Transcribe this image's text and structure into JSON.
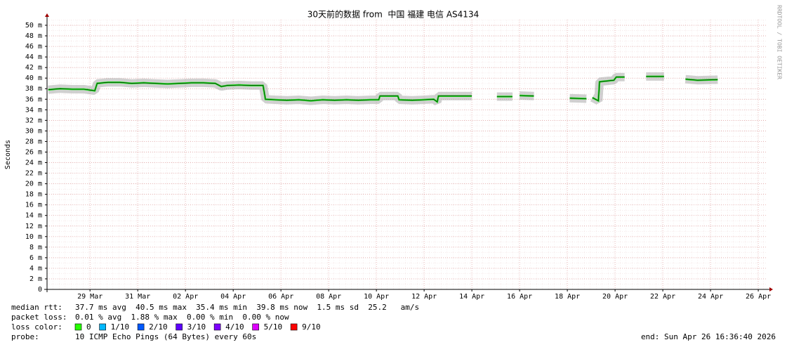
{
  "chart_data": {
    "type": "line",
    "title": "30天前的数据 from  中国 福建 电信 AS4134",
    "y_label": "Seconds",
    "side_note": "RRDTOOL / TOBI OETIKER",
    "grid": true,
    "xlim": [
      86.2,
      116.38
    ],
    "ylim": [
      0,
      51.06
    ],
    "xticks": [
      {
        "value": 88,
        "label": "29 Mar"
      },
      {
        "value": 90,
        "label": "31 Mar"
      },
      {
        "value": 92,
        "label": "02 Apr"
      },
      {
        "value": 94,
        "label": "04 Apr"
      },
      {
        "value": 96,
        "label": "06 Apr"
      },
      {
        "value": 98,
        "label": "08 Apr"
      },
      {
        "value": 100,
        "label": "10 Apr"
      },
      {
        "value": 102,
        "label": "12 Apr"
      },
      {
        "value": 104,
        "label": "14 Apr"
      },
      {
        "value": 106,
        "label": "16 Apr"
      },
      {
        "value": 108,
        "label": "18 Apr"
      },
      {
        "value": 110,
        "label": "20 Apr"
      },
      {
        "value": 112,
        "label": "22 Apr"
      },
      {
        "value": 114,
        "label": "24 Apr"
      },
      {
        "value": 116,
        "label": "26 Apr"
      }
    ],
    "yticks": [
      0,
      {
        "value": 2,
        "label": "2 m"
      },
      {
        "value": 4,
        "label": "4 m"
      },
      {
        "value": 6,
        "label": "6 m"
      },
      {
        "value": 8,
        "label": "8 m"
      },
      {
        "value": 10,
        "label": "10 m"
      },
      {
        "value": 12,
        "label": "12 m"
      },
      {
        "value": 14,
        "label": "14 m"
      },
      {
        "value": 16,
        "label": "16 m"
      },
      {
        "value": 18,
        "label": "18 m"
      },
      {
        "value": 20,
        "label": "20 m"
      },
      {
        "value": 22,
        "label": "22 m"
      },
      {
        "value": 24,
        "label": "24 m"
      },
      {
        "value": 26,
        "label": "26 m"
      },
      {
        "value": 28,
        "label": "28 m"
      },
      {
        "value": 30,
        "label": "30 m"
      },
      {
        "value": 32,
        "label": "32 m"
      },
      {
        "value": 34,
        "label": "34 m"
      },
      {
        "value": 36,
        "label": "36 m"
      },
      {
        "value": 38,
        "label": "38 m"
      },
      {
        "value": 40,
        "label": "40 m"
      },
      {
        "value": 42,
        "label": "42 m"
      },
      {
        "value": 44,
        "label": "44 m"
      },
      {
        "value": 46,
        "label": "46 m"
      },
      {
        "value": 48,
        "label": "48 m"
      },
      {
        "value": 50,
        "label": "50 m"
      }
    ],
    "x": [
      86.25,
      86.75,
      87.25,
      87.75,
      88.2,
      88.3,
      88.75,
      89.25,
      89.75,
      90.25,
      90.75,
      91.25,
      91.75,
      92.25,
      92.75,
      93.25,
      93.5,
      93.75,
      94.25,
      94.75,
      95.25,
      95.35,
      95.75,
      96.25,
      96.75,
      97.25,
      97.75,
      98.25,
      98.75,
      99.25,
      99.75,
      100.1,
      100.15,
      100.9,
      100.95,
      101.5,
      102,
      102.4,
      102.55,
      102.6,
      103.25,
      104,
      104.5,
      105.05,
      105.7,
      105.85,
      106.0,
      106.6,
      107,
      108.1,
      108.8,
      109,
      109.05,
      109.3,
      109.35,
      109.95,
      110.05,
      110.4,
      110.7,
      111.3,
      112.05,
      112.5,
      112.95,
      113.45,
      114.3
    ],
    "series": [
      {
        "color": "#20e020",
        "values": [
          37.8,
          38.0,
          37.9,
          37.9,
          37.6,
          39.0,
          39.2,
          39.2,
          39.0,
          39.1,
          39.0,
          38.9,
          39.0,
          39.1,
          39.1,
          39.0,
          38.4,
          38.6,
          38.7,
          38.6,
          38.6,
          36.0,
          35.9,
          35.8,
          35.9,
          35.7,
          35.9,
          35.8,
          35.9,
          35.8,
          35.9,
          35.9,
          36.6,
          36.6,
          35.9,
          35.8,
          35.9,
          36.0,
          35.5,
          36.6,
          36.6,
          36.6,
          null,
          36.5,
          36.5,
          null,
          36.7,
          36.6,
          null,
          36.2,
          36.1,
          null,
          36.3,
          35.7,
          39.3,
          39.6,
          40.2,
          40.2,
          null,
          40.3,
          40.3,
          null,
          39.8,
          39.6,
          39.7
        ]
      }
    ],
    "footer": {
      "rtt_label": "median rtt:",
      "rtt": "37.7 ms avg  40.5 ms max  35.4 ms min  39.8 ms now  1.5 ms sd  25.2   am/s",
      "loss_label": "packet loss:",
      "loss": "0.01 % avg  1.88 % max  0.00 % min  0.00 % now",
      "color_label": "loss color:",
      "loss_colors": [
        {
          "label": "0",
          "color": "#26ff00"
        },
        {
          "label": "1/10",
          "color": "#00b8ff"
        },
        {
          "label": "2/10",
          "color": "#0059ff"
        },
        {
          "label": "3/10",
          "color": "#5e00ff"
        },
        {
          "label": "4/10",
          "color": "#7e00ff"
        },
        {
          "label": "5/10",
          "color": "#dd00ff"
        },
        {
          "label": "9/10",
          "color": "#ff0000"
        }
      ],
      "probe_label": "probe:",
      "probe": "10 ICMP Echo Pings (64 Bytes) every 60s",
      "end": "end: Sun Apr 26 16:36:40 2026"
    }
  }
}
